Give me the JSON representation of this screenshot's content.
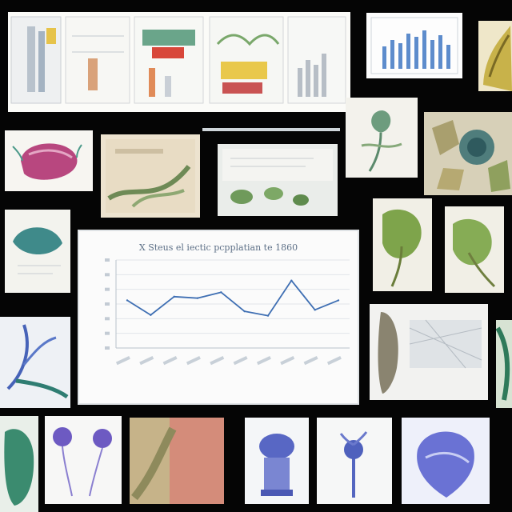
{
  "chart_data": {
    "type": "line",
    "title": "X Steus el iectic pcpplatian te 1860",
    "categories": [
      "",
      "",
      "",
      "",
      "",
      "",
      "",
      "",
      "",
      ""
    ],
    "series": [
      {
        "values": [
          6.5,
          4.5,
          7.0,
          6.8,
          7.6,
          5.0,
          4.4,
          9.2,
          5.2,
          6.5
        ]
      }
    ],
    "ylim": [
      0,
      12
    ],
    "grid": true,
    "xlabel": "",
    "colors": {
      "line": "#3f6fb3",
      "grid": "#e2e6ea",
      "axis": "#b9c2cb"
    }
  },
  "tiles": [
    {
      "name": "building-diagrams-collage",
      "icon": "architecture-diagram"
    },
    {
      "name": "bar-chart-panel",
      "icon": "bar-chart"
    },
    {
      "name": "plant-photo-yellow",
      "icon": "plant"
    },
    {
      "name": "pink-organ-illustration",
      "icon": "organ"
    },
    {
      "name": "root-sketch",
      "icon": "root"
    },
    {
      "name": "leaves-panel",
      "icon": "leaves"
    },
    {
      "name": "leaf-study",
      "icon": "leaf"
    },
    {
      "name": "cell-pattern",
      "icon": "cells"
    },
    {
      "name": "green-seed-illustration",
      "icon": "seed"
    },
    {
      "name": "plant-specimen-left",
      "icon": "plant"
    },
    {
      "name": "plant-specimen-right",
      "icon": "plant"
    },
    {
      "name": "blue-branch-illustration",
      "icon": "branch"
    },
    {
      "name": "bone-mesh-illustration",
      "icon": "bone"
    },
    {
      "name": "green-jar-illustration",
      "icon": "jar"
    },
    {
      "name": "purple-flower-sketch",
      "icon": "flower"
    },
    {
      "name": "tissue-photo",
      "icon": "tissue"
    },
    {
      "name": "blue-vase-illustration",
      "icon": "vase"
    },
    {
      "name": "blue-plant-sketch",
      "icon": "plant"
    },
    {
      "name": "blue-anatomy-illustration",
      "icon": "anatomy"
    },
    {
      "name": "green-edge-illustration",
      "icon": "leaf"
    }
  ]
}
